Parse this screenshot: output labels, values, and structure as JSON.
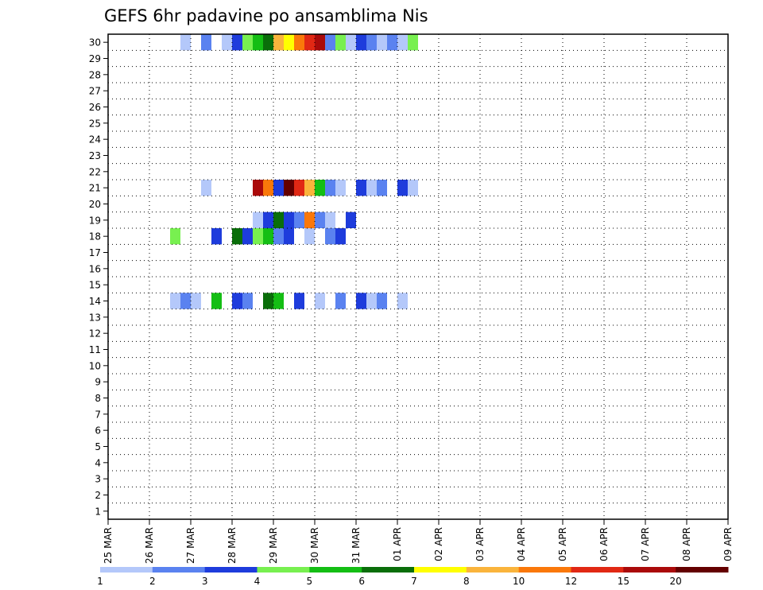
{
  "chart_data": {
    "type": "heatmap",
    "title": "GEFS 6hr padavine po ansamblima Nis",
    "xlabel": "",
    "ylabel": "",
    "x_step": "6hr",
    "x_ticks": [
      "25 MAR",
      "26 MAR",
      "27 MAR",
      "28 MAR",
      "29 MAR",
      "30 MAR",
      "31 MAR",
      "01 APR",
      "02 APR",
      "03 APR",
      "04 APR",
      "05 APR",
      "06 APR",
      "07 APR",
      "08 APR",
      "09 APR"
    ],
    "y_ticks": [
      "1",
      "2",
      "3",
      "4",
      "5",
      "6",
      "7",
      "8",
      "9",
      "10",
      "11",
      "12",
      "13",
      "14",
      "15",
      "16",
      "17",
      "18",
      "19",
      "20",
      "21",
      "22",
      "23",
      "24",
      "25",
      "26",
      "27",
      "28",
      "29",
      "30"
    ],
    "ylim": [
      0,
      30
    ],
    "grid": true,
    "colorbar": {
      "labels": [
        "1",
        "2",
        "3",
        "4",
        "5",
        "6",
        "7",
        "8",
        "10",
        "12",
        "15",
        "20"
      ],
      "colors": [
        "#b4c8fa",
        "#5a82f0",
        "#1e3cdc",
        "#78f050",
        "#14be14",
        "#0a6e0a",
        "#ffff00",
        "#fab43c",
        "#fa780a",
        "#e12814",
        "#aa0a0a",
        "#640000"
      ]
    },
    "cell_values": [
      [
        26.75,
        1
      ],
      [
        27.25,
        2
      ],
      [
        27.75,
        1
      ],
      [
        28,
        3
      ],
      [
        28.25,
        4
      ],
      [
        28.5,
        5
      ],
      [
        28.75,
        6
      ],
      [
        29,
        8
      ],
      [
        29.25,
        7
      ],
      [
        29.5,
        10
      ],
      [
        29.75,
        12
      ],
      [
        30,
        15
      ],
      [
        30.25,
        2
      ],
      [
        30.5,
        4
      ],
      [
        30.75,
        1
      ],
      [
        31,
        3
      ],
      [
        31.25,
        2
      ],
      [
        31.5,
        1
      ],
      [
        31.75,
        2
      ],
      [
        32,
        1
      ],
      [
        32.25,
        4
      ],
      [
        27.25,
        1
      ],
      [
        28.5,
        15
      ],
      [
        28.75,
        10
      ],
      [
        29,
        3
      ],
      [
        29.25,
        20
      ],
      [
        29.5,
        12
      ],
      [
        29.75,
        8
      ],
      [
        30,
        5
      ],
      [
        30.25,
        2
      ],
      [
        30.5,
        1
      ],
      [
        31,
        3
      ],
      [
        31.25,
        1
      ],
      [
        31.5,
        2
      ],
      [
        32,
        3
      ],
      [
        32.25,
        1
      ],
      [
        28.5,
        1
      ],
      [
        28.75,
        3
      ],
      [
        29,
        6
      ],
      [
        29.25,
        3
      ],
      [
        29.5,
        2
      ],
      [
        29.75,
        10
      ],
      [
        30,
        2
      ],
      [
        30.25,
        1
      ],
      [
        30.75,
        3
      ],
      [
        26.5,
        4
      ],
      [
        27.5,
        3
      ],
      [
        28,
        6
      ],
      [
        28.25,
        3
      ],
      [
        28.5,
        4
      ],
      [
        28.75,
        5
      ],
      [
        29,
        2
      ],
      [
        29.25,
        3
      ],
      [
        29.75,
        1
      ],
      [
        30.25,
        2
      ],
      [
        30.5,
        3
      ],
      [
        26.5,
        1
      ],
      [
        26.75,
        2
      ],
      [
        27,
        1
      ],
      [
        27.5,
        5
      ],
      [
        28,
        3
      ],
      [
        28.25,
        2
      ],
      [
        28.75,
        6
      ],
      [
        29,
        5
      ],
      [
        29.5,
        3
      ],
      [
        30,
        1
      ],
      [
        30.5,
        2
      ],
      [
        31,
        3
      ],
      [
        31.25,
        1
      ],
      [
        31.5,
        2
      ],
      [
        32,
        1
      ]
    ]
  }
}
